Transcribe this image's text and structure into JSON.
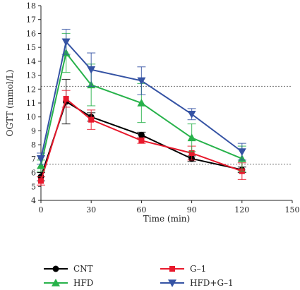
{
  "chart_data": {
    "type": "line",
    "xlabel": "Time (min)",
    "ylabel": "OGTT (mmol/L)",
    "xlim": [
      0,
      150
    ],
    "ylim": [
      4,
      18
    ],
    "xticks": [
      0,
      30,
      60,
      90,
      120,
      150
    ],
    "yticks": [
      4,
      5,
      6,
      7,
      8,
      9,
      10,
      11,
      12,
      13,
      14,
      15,
      16,
      17,
      18
    ],
    "reference_lines": [
      12.2,
      6.6
    ],
    "legend_position": "bottom",
    "x": [
      0,
      15,
      30,
      60,
      90,
      120
    ],
    "series": [
      {
        "name": "CNT",
        "color": "#000000",
        "marker": "circle",
        "values": [
          5.7,
          11.1,
          10.0,
          8.7,
          7.0,
          6.2
        ],
        "errors": [
          0.3,
          1.6,
          0.3,
          0.2,
          0.2,
          0.2
        ]
      },
      {
        "name": "G–1",
        "color": "#e8192c",
        "marker": "square",
        "values": [
          5.4,
          11.3,
          9.8,
          8.3,
          7.4,
          6.1
        ],
        "errors": [
          0.3,
          0.6,
          0.7,
          0.2,
          0.5,
          0.6
        ]
      },
      {
        "name": "HFD",
        "color": "#27b24a",
        "marker": "triangle-up",
        "values": [
          6.5,
          14.6,
          12.3,
          11.0,
          8.5,
          7.0
        ],
        "errors": [
          0.4,
          1.4,
          1.5,
          1.4,
          1.0,
          0.9
        ]
      },
      {
        "name": "HFD+G–1",
        "color": "#3553a4",
        "marker": "triangle-down",
        "values": [
          7.0,
          15.4,
          13.4,
          12.6,
          10.2,
          7.5
        ],
        "errors": [
          0.4,
          0.9,
          1.2,
          1.0,
          0.4,
          0.6
        ]
      }
    ]
  }
}
